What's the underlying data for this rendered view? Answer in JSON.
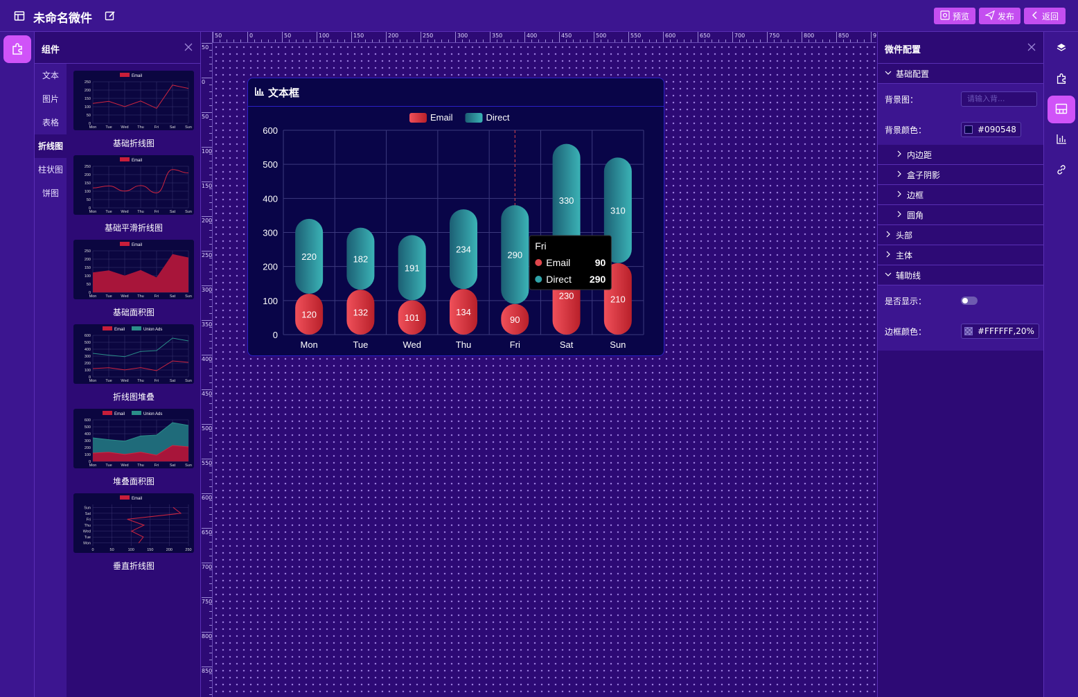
{
  "topbar": {
    "title": "未命名微件",
    "preview_label": "预览",
    "publish_label": "发布",
    "back_label": "返回"
  },
  "components_panel": {
    "title": "组件",
    "categories": [
      "文本",
      "图片",
      "表格",
      "折线图",
      "柱状图",
      "饼图"
    ],
    "active_category": "折线图",
    "items": [
      {
        "label": "基础折线图",
        "legend": [
          "Email"
        ]
      },
      {
        "label": "基础平滑折线图",
        "legend": [
          "Email"
        ]
      },
      {
        "label": "基础面积图",
        "legend": [
          "Email"
        ]
      },
      {
        "label": "折线图堆叠",
        "legend": [
          "Email",
          "Union Ads"
        ]
      },
      {
        "label": "堆叠面积图",
        "legend": [
          "Email",
          "Union Ads"
        ]
      },
      {
        "label": "垂直折线图",
        "legend": [
          "Email"
        ]
      }
    ],
    "thumb_x_labels": [
      "Mon",
      "Tue",
      "Wed",
      "Thu",
      "Fri",
      "Sat",
      "Sun"
    ],
    "thumb_y_ticks_small": [
      "250",
      "200",
      "150",
      "100",
      "50",
      "0"
    ],
    "thumb_y_ticks_stack": [
      "600",
      "500",
      "400",
      "300",
      "200",
      "100",
      "0"
    ],
    "thumb_vertical_x_ticks": [
      "0",
      "50",
      "100",
      "150",
      "200",
      "250"
    ]
  },
  "rulers": {
    "top": [
      "50",
      "0",
      "50",
      "100",
      "150",
      "200",
      "250",
      "300",
      "350",
      "400",
      "450",
      "500",
      "550",
      "600",
      "650",
      "700",
      "750",
      "800",
      "850",
      "90"
    ],
    "left": [
      "50",
      "0",
      "50",
      "100",
      "150",
      "200",
      "250",
      "300",
      "350",
      "400",
      "450",
      "500",
      "550",
      "600",
      "650",
      "700",
      "750",
      "800",
      "850"
    ]
  },
  "widget": {
    "title": "文本框",
    "background_color": "#090548"
  },
  "chart_data": {
    "type": "bar",
    "categories": [
      "Mon",
      "Tue",
      "Wed",
      "Thu",
      "Fri",
      "Sat",
      "Sun"
    ],
    "series": [
      {
        "name": "Email",
        "values": [
          120,
          132,
          101,
          134,
          90,
          230,
          210
        ],
        "color": "#d9363e"
      },
      {
        "name": "Direct",
        "values": [
          220,
          182,
          191,
          234,
          290,
          330,
          310
        ],
        "color": "#2fa3a8"
      }
    ],
    "stacked": true,
    "ylim": [
      0,
      600
    ],
    "yticks": [
      0,
      100,
      200,
      300,
      400,
      500,
      600
    ],
    "grid": true,
    "legend_position": "top-center",
    "tooltip": {
      "title": "Fri",
      "rows": [
        {
          "name": "Email",
          "value": "90",
          "color": "#e0474c"
        },
        {
          "name": "Direct",
          "value": "290",
          "color": "#2fa3a8"
        }
      ]
    }
  },
  "config_panel": {
    "title": "微件配置",
    "basic_section": "基础配置",
    "bg_image_label": "背景图：",
    "bg_image_placeholder": "请输入背...",
    "bg_color_label": "背景颜色：",
    "bg_color_value": "#090548",
    "sub_sections": [
      "内边距",
      "盒子阴影",
      "边框",
      "圆角"
    ],
    "sections": [
      "头部",
      "主体"
    ],
    "guide_section": "辅助线",
    "show_label": "是否显示：",
    "border_color_label": "边框颜色：",
    "border_color_value": "#FFFFFF,20%"
  },
  "colors": {
    "accent": "#d053f8",
    "topbar": "#3c1590",
    "panel": "#2d0a75",
    "widget_border": "#2a20c8"
  }
}
